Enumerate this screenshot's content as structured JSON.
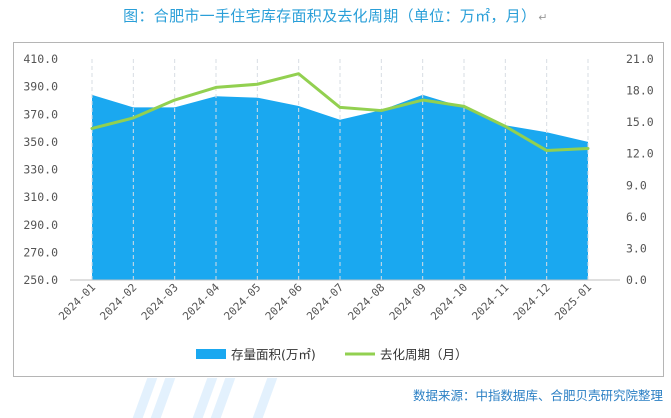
{
  "page": {
    "title": "图：合肥市一手住宅库存面积及去化周期（单位：万㎡，月）",
    "paragraph_mark": "↵",
    "source": "数据来源：中指数据库、合肥贝壳研究院整理"
  },
  "chart_data": {
    "type": "area+line",
    "categories": [
      "2024-01",
      "2024-02",
      "2024-03",
      "2024-04",
      "2024-05",
      "2024-06",
      "2024-07",
      "2024-08",
      "2024-09",
      "2024-10",
      "2024-11",
      "2024-12",
      "2025-01"
    ],
    "series": [
      {
        "name": "存量面积(万㎡)",
        "type": "area",
        "axis": "left",
        "color": "#1aa8f0",
        "values": [
          384,
          375,
          375,
          383,
          382,
          376,
          366,
          373,
          384,
          375,
          362,
          357,
          350
        ]
      },
      {
        "name": "去化周期（月）",
        "type": "line",
        "axis": "right",
        "color": "#92d050",
        "values": [
          14.4,
          15.4,
          17.1,
          18.3,
          18.6,
          19.6,
          16.4,
          16.1,
          17.1,
          16.5,
          14.6,
          12.3,
          12.5
        ]
      }
    ],
    "y_left": {
      "min": 250,
      "max": 410,
      "ticks": [
        "250.0",
        "270.0",
        "290.0",
        "310.0",
        "330.0",
        "350.0",
        "370.0",
        "390.0",
        "410.0"
      ]
    },
    "y_right": {
      "min": 0,
      "max": 21,
      "ticks": [
        "0.0",
        "3.0",
        "6.0",
        "9.0",
        "12.0",
        "15.0",
        "18.0",
        "21.0"
      ]
    },
    "grid": "vertical dashed",
    "legend_position": "bottom"
  }
}
